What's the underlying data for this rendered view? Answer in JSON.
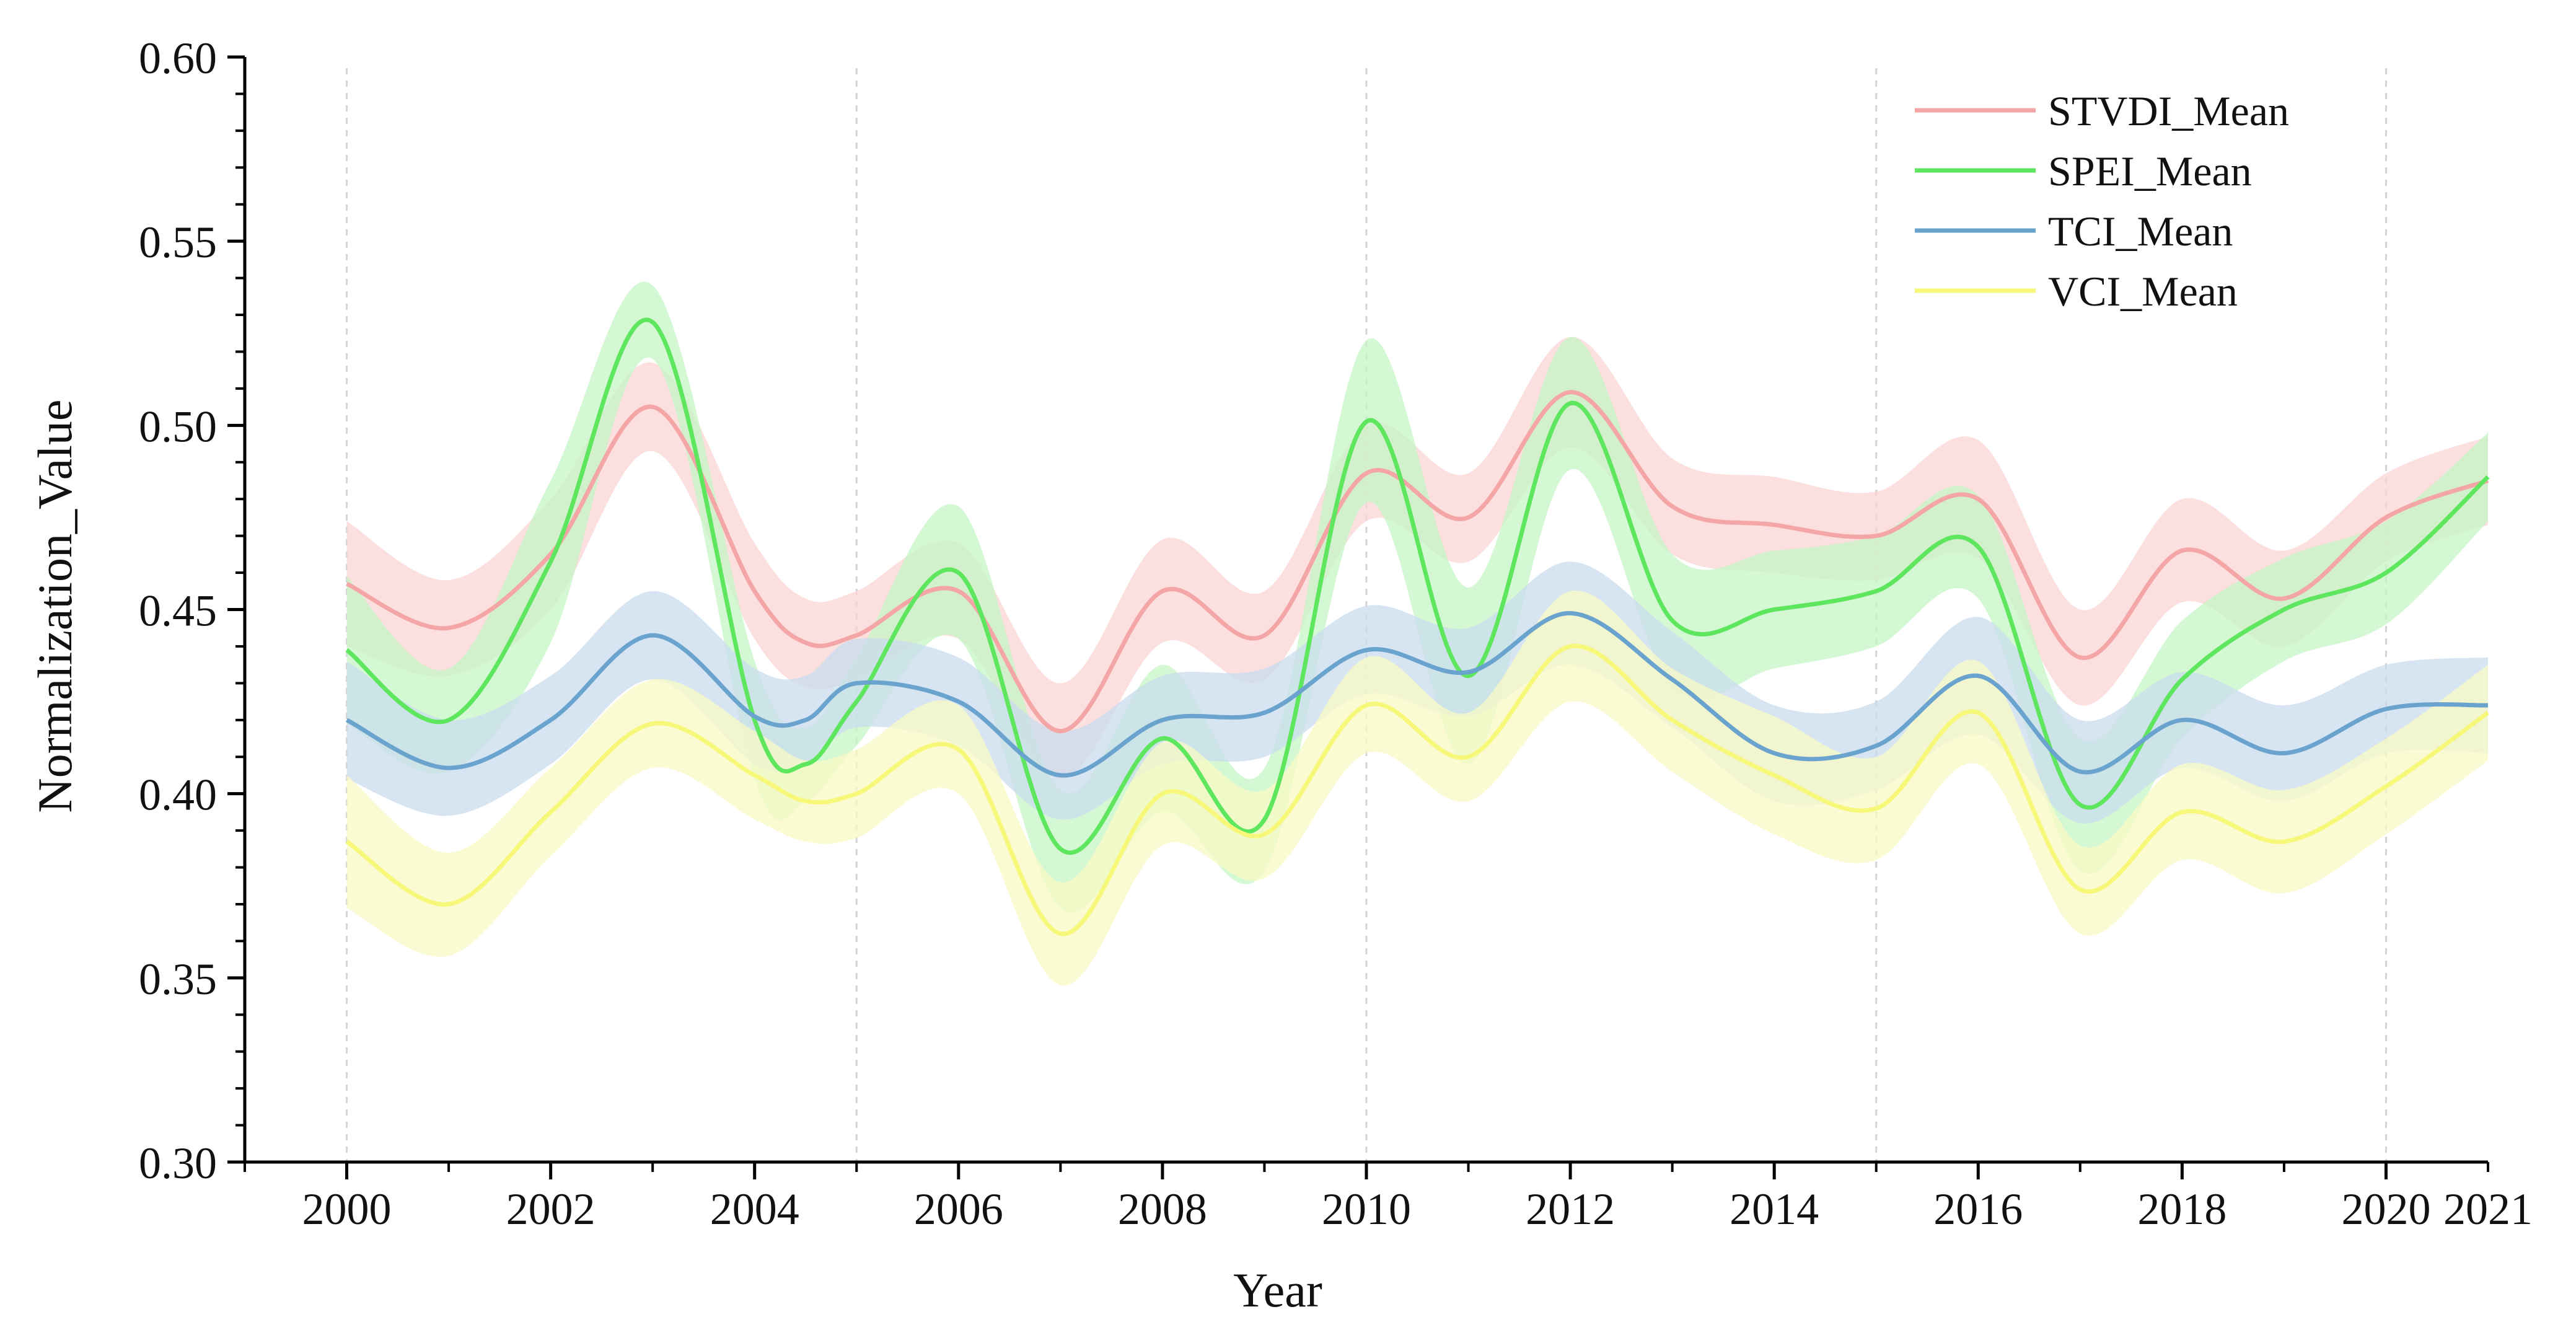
{
  "chart_data": {
    "type": "line",
    "title": "",
    "xlabel": "Year",
    "ylabel": "Normalization_Value",
    "xlim": [
      1999.0,
      2021.0
    ],
    "ylim": [
      0.3,
      0.6
    ],
    "x_ticks": [
      {
        "value": 2000,
        "label": "2000"
      },
      {
        "value": 2002,
        "label": "2002"
      },
      {
        "value": 2004,
        "label": "2004"
      },
      {
        "value": 2006,
        "label": "2006"
      },
      {
        "value": 2008,
        "label": "2008"
      },
      {
        "value": 2010,
        "label": "2010"
      },
      {
        "value": 2012,
        "label": "2012"
      },
      {
        "value": 2014,
        "label": "2014"
      },
      {
        "value": 2016,
        "label": "2016"
      },
      {
        "value": 2018,
        "label": "2018"
      },
      {
        "value": 2020,
        "label": "2020"
      },
      {
        "value": 2021,
        "label": "2021"
      }
    ],
    "y_ticks": [
      {
        "value": 0.3,
        "label": "0.30"
      },
      {
        "value": 0.35,
        "label": "0.35"
      },
      {
        "value": 0.4,
        "label": "0.40"
      },
      {
        "value": 0.45,
        "label": "0.45"
      },
      {
        "value": 0.5,
        "label": "0.50"
      },
      {
        "value": 0.55,
        "label": "0.55"
      },
      {
        "value": 0.6,
        "label": "0.60"
      }
    ],
    "grid_x": [
      2000,
      2005,
      2010,
      2015,
      2020
    ],
    "legend_position": "top-right",
    "series": [
      {
        "name": "STVDI_Mean",
        "color": "#f4a6a6",
        "band_color": "#fbd4d4",
        "x": [
          2000,
          2001,
          2002,
          2003,
          2004,
          2004.5,
          2005,
          2006,
          2007,
          2008,
          2009,
          2010,
          2011,
          2012,
          2013,
          2014,
          2015,
          2016,
          2017,
          2018,
          2019,
          2020,
          2021
        ],
        "values": [
          0.457,
          0.445,
          0.465,
          0.505,
          0.455,
          0.441,
          0.443,
          0.455,
          0.417,
          0.455,
          0.443,
          0.487,
          0.475,
          0.509,
          0.478,
          0.473,
          0.47,
          0.48,
          0.437,
          0.466,
          0.453,
          0.475,
          0.485
        ],
        "band": [
          0.017,
          0.013,
          0.015,
          0.012,
          0.013,
          0.012,
          0.012,
          0.013,
          0.013,
          0.014,
          0.012,
          0.013,
          0.012,
          0.015,
          0.013,
          0.013,
          0.012,
          0.016,
          0.013,
          0.014,
          0.013,
          0.012,
          0.012
        ]
      },
      {
        "name": "SPEI_Mean",
        "color": "#5ee65e",
        "band_color": "#c6f5c6",
        "x": [
          2000,
          2001,
          2002,
          2003,
          2004,
          2004.5,
          2005,
          2006,
          2007,
          2008,
          2009,
          2010,
          2011,
          2012,
          2013,
          2014,
          2015,
          2016,
          2017,
          2018,
          2019,
          2020,
          2021
        ],
        "values": [
          0.439,
          0.42,
          0.463,
          0.528,
          0.42,
          0.408,
          0.425,
          0.46,
          0.385,
          0.415,
          0.393,
          0.501,
          0.432,
          0.506,
          0.447,
          0.45,
          0.455,
          0.467,
          0.397,
          0.431,
          0.45,
          0.46,
          0.486
        ],
        "band": [
          0.02,
          0.014,
          0.022,
          0.01,
          0.016,
          0.01,
          0.012,
          0.018,
          0.016,
          0.02,
          0.014,
          0.022,
          0.024,
          0.018,
          0.018,
          0.016,
          0.015,
          0.014,
          0.018,
          0.016,
          0.014,
          0.014,
          0.012
        ]
      },
      {
        "name": "TCI_Mean",
        "color": "#6aa3cd",
        "band_color": "#c9dcee",
        "x": [
          2000,
          2001,
          2002,
          2003,
          2004,
          2004.5,
          2005,
          2006,
          2007,
          2008,
          2009,
          2010,
          2011,
          2012,
          2013,
          2014,
          2015,
          2016,
          2017,
          2018,
          2019,
          2020,
          2021
        ],
        "values": [
          0.42,
          0.407,
          0.42,
          0.443,
          0.421,
          0.42,
          0.43,
          0.425,
          0.405,
          0.42,
          0.422,
          0.439,
          0.433,
          0.449,
          0.431,
          0.411,
          0.413,
          0.432,
          0.406,
          0.42,
          0.411,
          0.423,
          0.424
        ],
        "band": [
          0.016,
          0.013,
          0.012,
          0.012,
          0.013,
          0.012,
          0.012,
          0.012,
          0.012,
          0.012,
          0.012,
          0.012,
          0.012,
          0.014,
          0.013,
          0.013,
          0.012,
          0.016,
          0.014,
          0.013,
          0.013,
          0.012,
          0.013
        ]
      },
      {
        "name": "VCI_Mean",
        "color": "#f7f77a",
        "band_color": "#fafac4",
        "x": [
          2000,
          2001,
          2002,
          2003,
          2004,
          2004.5,
          2005,
          2006,
          2007,
          2008,
          2009,
          2010,
          2011,
          2012,
          2013,
          2014,
          2015,
          2016,
          2017,
          2018,
          2019,
          2020,
          2021
        ],
        "values": [
          0.387,
          0.37,
          0.395,
          0.419,
          0.405,
          0.398,
          0.4,
          0.412,
          0.362,
          0.4,
          0.389,
          0.424,
          0.41,
          0.44,
          0.42,
          0.405,
          0.396,
          0.422,
          0.374,
          0.395,
          0.387,
          0.402,
          0.422
        ],
        "band": [
          0.018,
          0.014,
          0.012,
          0.012,
          0.012,
          0.011,
          0.012,
          0.012,
          0.014,
          0.014,
          0.012,
          0.013,
          0.012,
          0.015,
          0.014,
          0.016,
          0.014,
          0.014,
          0.012,
          0.013,
          0.014,
          0.013,
          0.013
        ]
      }
    ]
  }
}
